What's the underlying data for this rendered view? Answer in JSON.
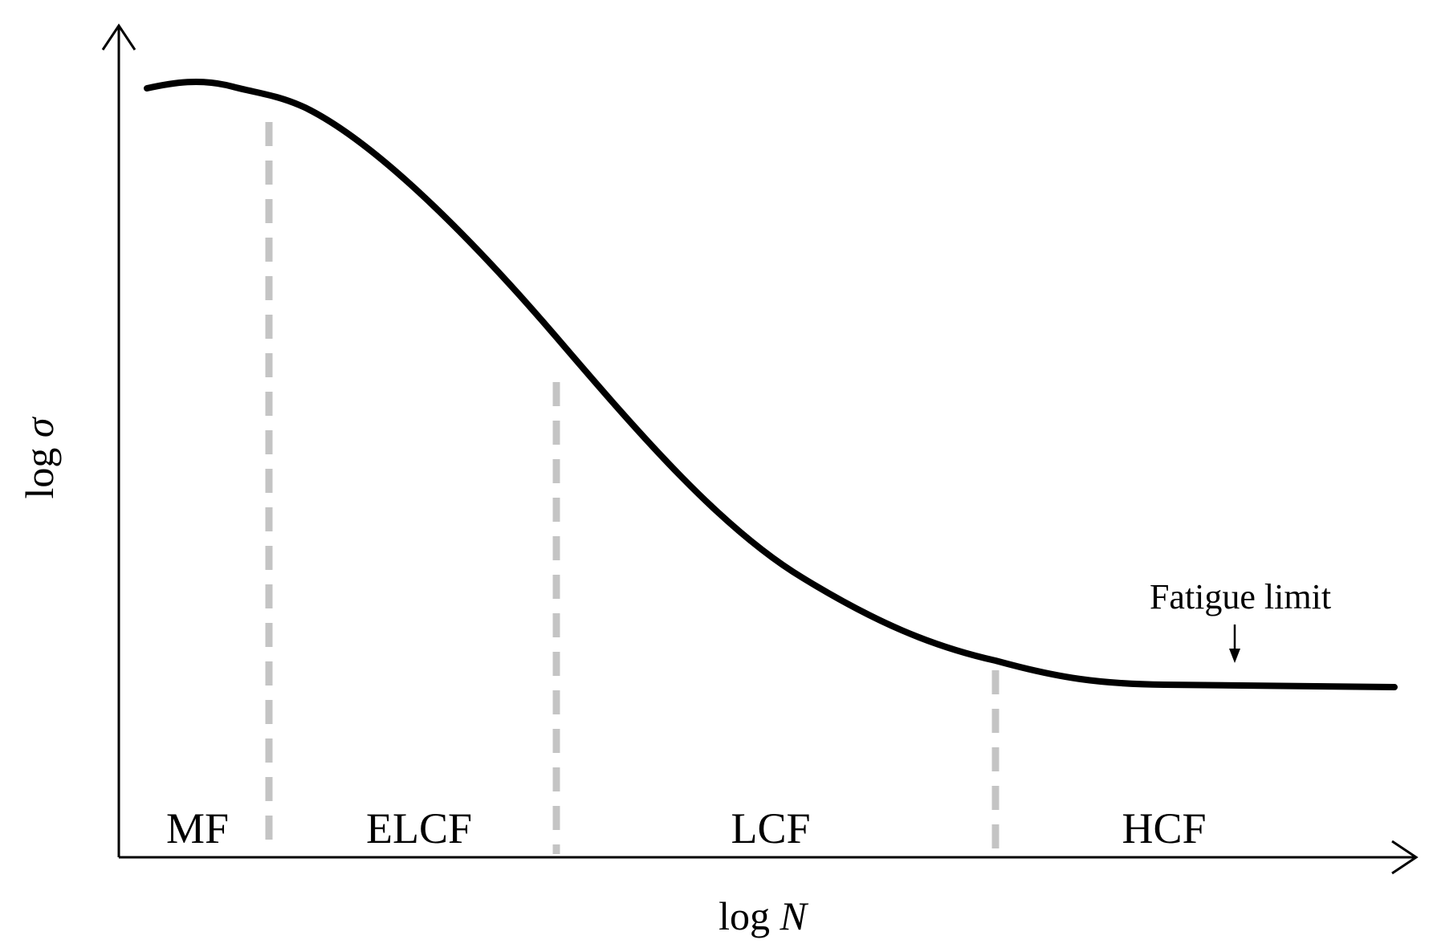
{
  "figure": {
    "x_axis": {
      "prefix": "log ",
      "symbol": "N"
    },
    "y_axis": {
      "prefix": "log ",
      "symbol": "σ"
    },
    "regions": [
      {
        "label": "MF"
      },
      {
        "label": "ELCF"
      },
      {
        "label": "LCF"
      },
      {
        "label": "HCF"
      }
    ],
    "annotation": {
      "text": "Fatigue limit"
    },
    "colors": {
      "curve": "#000000",
      "axes": "#000000",
      "region_divider": "#c4c4c4"
    }
  }
}
